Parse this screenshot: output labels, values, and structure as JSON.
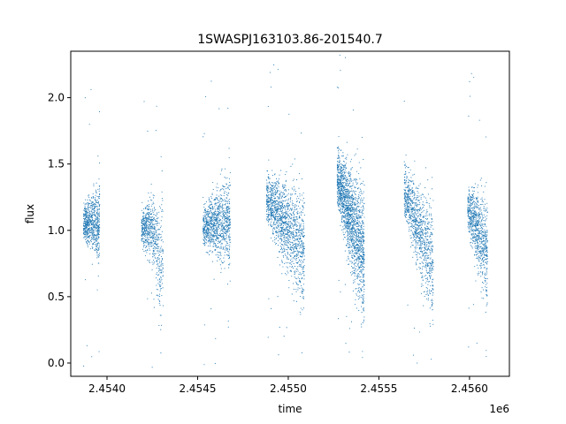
{
  "chart_data": {
    "type": "scatter",
    "title": "1SWASPJ163103.86-201540.7",
    "xlabel": "time",
    "ylabel": "flux",
    "x_offset_label": "1e6",
    "xlim": [
      2453800,
      2456220
    ],
    "ylim": [
      -0.1,
      2.35
    ],
    "xticks": [
      2454000,
      2454500,
      2455000,
      2455500,
      2456000
    ],
    "xtick_labels": [
      "2.4540",
      "2.4545",
      "2.4550",
      "2.4555",
      "2.4560"
    ],
    "yticks": [
      0.0,
      0.5,
      1.0,
      1.5,
      2.0
    ],
    "ytick_labels": [
      "0.0",
      "0.5",
      "1.0",
      "1.5",
      "2.0"
    ],
    "grid": false,
    "marker_color": "#1f77b4",
    "observing_seasons": [
      {
        "x_start": 2453870,
        "x_end": 2453960,
        "flux_center": 1.05,
        "flux_spread": 0.1,
        "density": 700,
        "trend": 0.0
      },
      {
        "x_start": 2454190,
        "x_end": 2454265,
        "flux_center": 1.02,
        "flux_spread": 0.1,
        "density": 450,
        "trend": 0.0
      },
      {
        "x_start": 2454265,
        "x_end": 2454310,
        "flux_center": 0.8,
        "flux_spread": 0.22,
        "density": 200,
        "trend": -0.2
      },
      {
        "x_start": 2454530,
        "x_end": 2454680,
        "flux_center": 1.05,
        "flux_spread": 0.12,
        "density": 1000,
        "trend": 0.05
      },
      {
        "x_start": 2454880,
        "x_end": 2455090,
        "flux_center": 1.05,
        "flux_spread": 0.16,
        "density": 1400,
        "trend": -0.4
      },
      {
        "x_start": 2455270,
        "x_end": 2455420,
        "flux_center": 1.1,
        "flux_spread": 0.18,
        "density": 1700,
        "trend": -0.6
      },
      {
        "x_start": 2455640,
        "x_end": 2455800,
        "flux_center": 1.02,
        "flux_spread": 0.16,
        "density": 1000,
        "trend": -0.55
      },
      {
        "x_start": 2455990,
        "x_end": 2456100,
        "flux_center": 1.0,
        "flux_spread": 0.14,
        "density": 800,
        "trend": -0.35
      }
    ]
  }
}
